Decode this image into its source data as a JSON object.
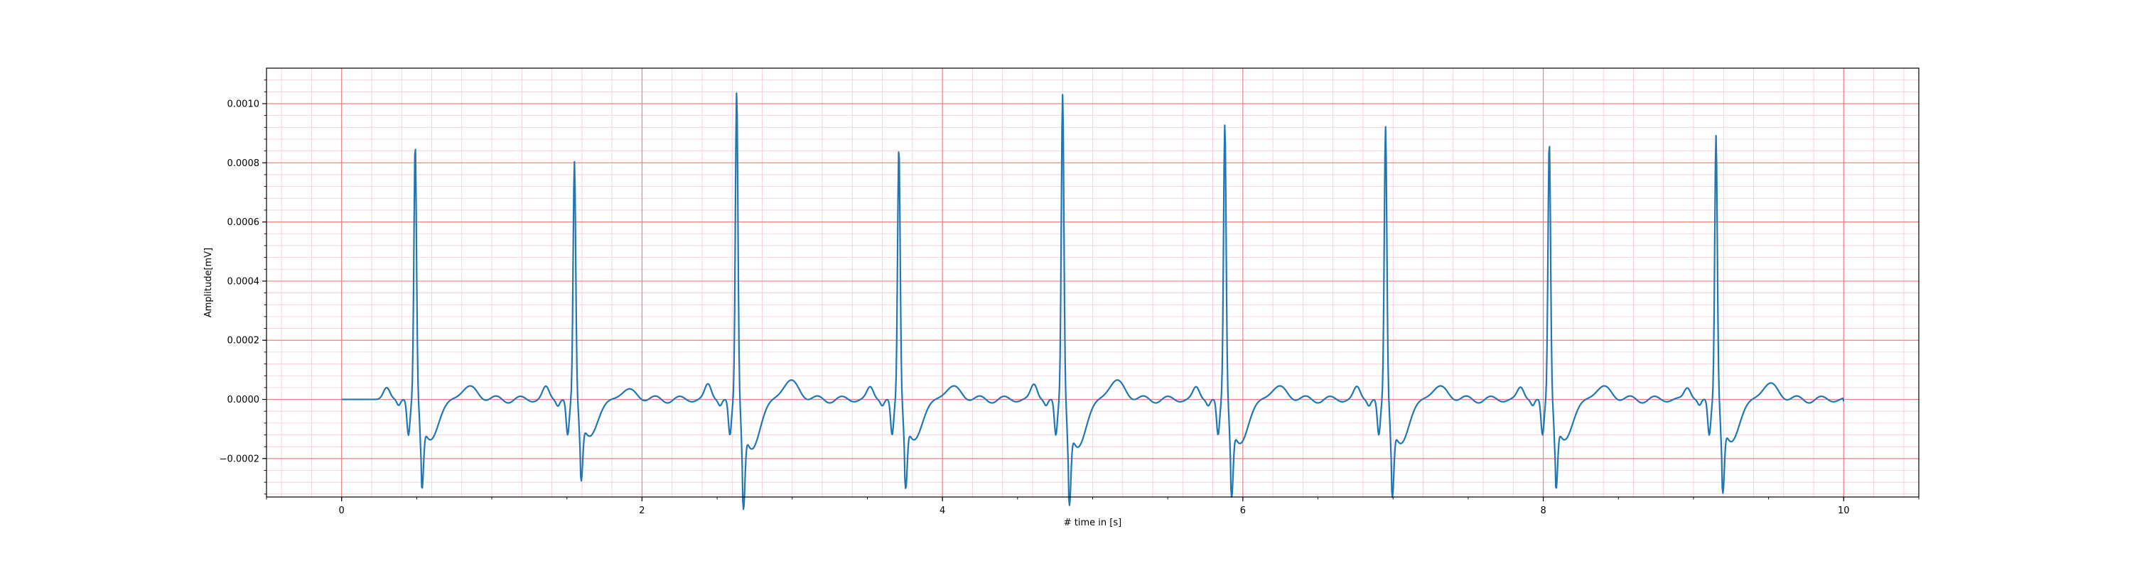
{
  "chart_data": {
    "type": "line",
    "title": "",
    "xlabel": "# time in [s]",
    "ylabel": "Amplitude[mV]",
    "xlim": [
      -0.5,
      10.5
    ],
    "ylim": [
      -0.00033,
      0.00112
    ],
    "x_ticks": [
      0,
      2,
      4,
      6,
      8,
      10
    ],
    "x_tick_labels": [
      "0",
      "2",
      "4",
      "6",
      "8",
      "10"
    ],
    "y_ticks": [
      -0.0002,
      0.0,
      0.0002,
      0.0004,
      0.0006,
      0.0008,
      0.001
    ],
    "y_tick_labels": [
      "−0.0002",
      "0.0000",
      "0.0002",
      "0.0004",
      "0.0006",
      "0.0008",
      "0.0010"
    ],
    "grid": {
      "major": true,
      "minor": true,
      "major_color": "#f08080",
      "minor_color": "#f7c8d6"
    },
    "line_color": "#1f77b4",
    "series": [
      {
        "x_start": 0,
        "x_end": 10,
        "beats": [
          {
            "r_time": 0.49,
            "r_peak": 0.00087,
            "s_trough": -0.00022,
            "t_amp": 4e-05,
            "p_amp": 4e-05
          },
          {
            "r_time": 1.55,
            "r_peak": 0.00081,
            "s_trough": -0.0002,
            "t_amp": 3e-05,
            "p_amp": 4e-05
          },
          {
            "r_time": 2.63,
            "r_peak": 0.00105,
            "s_trough": -0.00027,
            "t_amp": 6e-05,
            "p_amp": 5e-05
          },
          {
            "r_time": 3.71,
            "r_peak": 0.00086,
            "s_trough": -0.00022,
            "t_amp": 4e-05,
            "p_amp": 4e-05
          },
          {
            "r_time": 4.8,
            "r_peak": 0.00104,
            "s_trough": -0.00026,
            "t_amp": 6e-05,
            "p_amp": 5e-05
          },
          {
            "r_time": 5.88,
            "r_peak": 0.00094,
            "s_trough": -0.00024,
            "t_amp": 4e-05,
            "p_amp": 4e-05
          },
          {
            "r_time": 6.95,
            "r_peak": 0.00093,
            "s_trough": -0.00024,
            "t_amp": 4e-05,
            "p_amp": 4e-05
          },
          {
            "r_time": 8.04,
            "r_peak": 0.00088,
            "s_trough": -0.00022,
            "t_amp": 4e-05,
            "p_amp": 4e-05
          },
          {
            "r_time": 9.15,
            "r_peak": 0.0009,
            "s_trough": -0.00023,
            "t_amp": 5e-05,
            "p_amp": 4e-05
          }
        ]
      }
    ]
  }
}
